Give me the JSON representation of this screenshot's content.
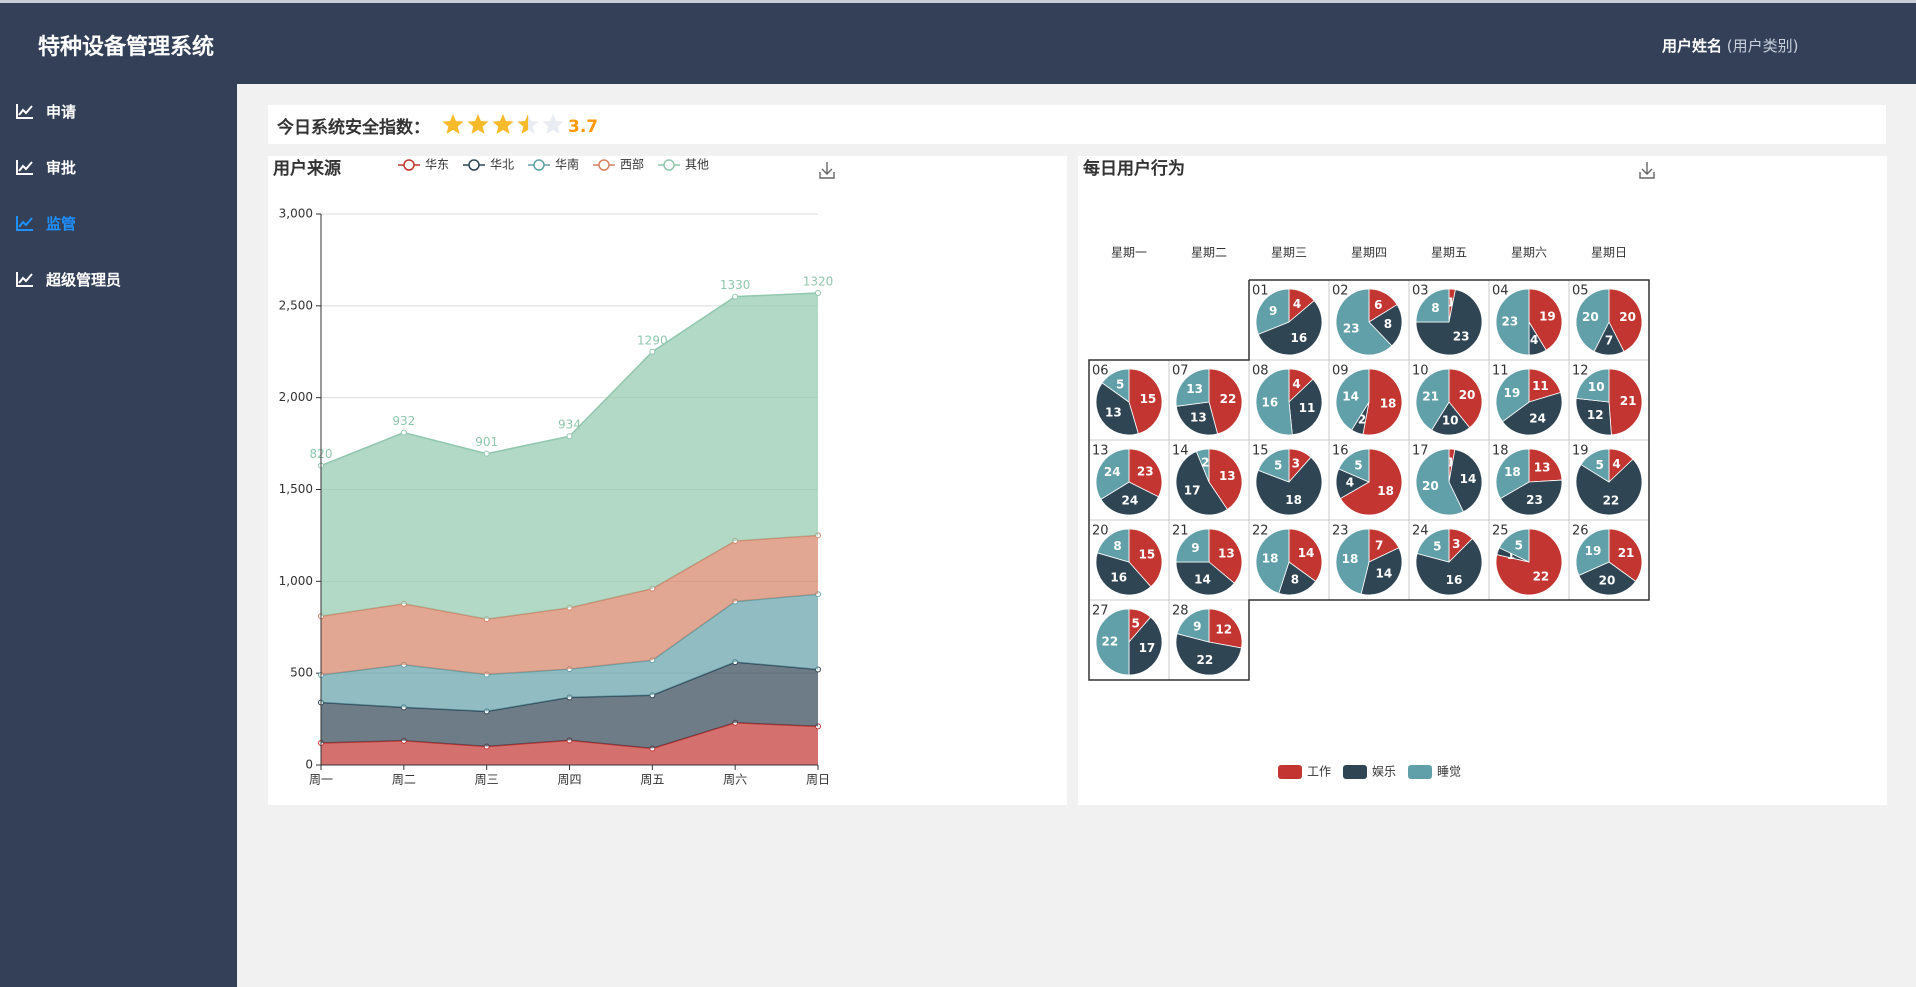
{
  "header": {
    "title": "特种设备管理系统",
    "user_name": "用户姓名",
    "user_type": "(用户类别)"
  },
  "menu": [
    "申请",
    "审批",
    "监管",
    "超级管理员"
  ],
  "active_menu": 2,
  "safety": {
    "label": "今日系统安全指数：",
    "rating": 3.7,
    "stars": 5
  },
  "chart_data": [
    {
      "type": "stacked_area",
      "title": "用户来源",
      "categories": [
        "周一",
        "周二",
        "周三",
        "周四",
        "周五",
        "周六",
        "周日"
      ],
      "series": [
        {
          "name": "华东",
          "color": "#c23531",
          "values": [
            120,
            132,
            101,
            134,
            90,
            230,
            210
          ]
        },
        {
          "name": "华北",
          "color": "#2f4554",
          "values": [
            220,
            182,
            191,
            234,
            290,
            330,
            310
          ]
        },
        {
          "name": "华南",
          "color": "#61a0a8",
          "values": [
            150,
            232,
            201,
            154,
            190,
            330,
            410
          ]
        },
        {
          "name": "西部",
          "color": "#d48265",
          "values": [
            320,
            332,
            301,
            334,
            390,
            330,
            320
          ]
        },
        {
          "name": "其他",
          "color": "#91c7ae",
          "values": [
            820,
            932,
            901,
            934,
            1290,
            1330,
            1320
          ],
          "labels": true
        }
      ],
      "ylim": [
        0,
        3000
      ],
      "yticks": [
        0,
        500,
        {
          "value": 1000,
          "label": "1,000"
        },
        {
          "value": 1500,
          "label": "1,500"
        },
        {
          "value": 2000,
          "label": "2,000"
        },
        {
          "value": 2500,
          "label": "2,500"
        },
        {
          "value": 3000,
          "label": "3,000"
        }
      ],
      "grid": true,
      "legend": "top"
    },
    {
      "type": "calendar_pie",
      "title": "每日用户行为",
      "weekdays": [
        "星期一",
        "星期二",
        "星期三",
        "星期四",
        "星期五",
        "星期六",
        "星期日"
      ],
      "days": [
        "01",
        "02",
        "03",
        "04",
        "05",
        "06",
        "07",
        "08",
        "09",
        "10",
        "11",
        "12",
        "13",
        "14",
        "15",
        "16",
        "17",
        "18",
        "19",
        "20",
        "21",
        "22",
        "23",
        "24",
        "25",
        "26",
        "27",
        "28"
      ],
      "series": [
        {
          "name": "工作",
          "color": "#c23531",
          "values": [
            4,
            6,
            1,
            19,
            20,
            15,
            22,
            4,
            18,
            20,
            11,
            21,
            23,
            13,
            3,
            18,
            1,
            13,
            4,
            15,
            13,
            14,
            7,
            3,
            22,
            21,
            5,
            12
          ]
        },
        {
          "name": "娱乐",
          "color": "#2f4554",
          "values": [
            16,
            8,
            23,
            4,
            7,
            13,
            13,
            11,
            2,
            10,
            24,
            12,
            24,
            17,
            18,
            4,
            14,
            23,
            22,
            16,
            14,
            8,
            14,
            16,
            1,
            20,
            17,
            22
          ]
        },
        {
          "name": "睡觉",
          "color": "#61a0a8",
          "values": [
            9,
            23,
            8,
            23,
            20,
            5,
            13,
            16,
            14,
            21,
            19,
            10,
            24,
            2,
            5,
            5,
            20,
            18,
            5,
            8,
            9,
            18,
            18,
            5,
            5,
            19,
            22,
            9
          ]
        }
      ],
      "legend": "bottom"
    }
  ]
}
